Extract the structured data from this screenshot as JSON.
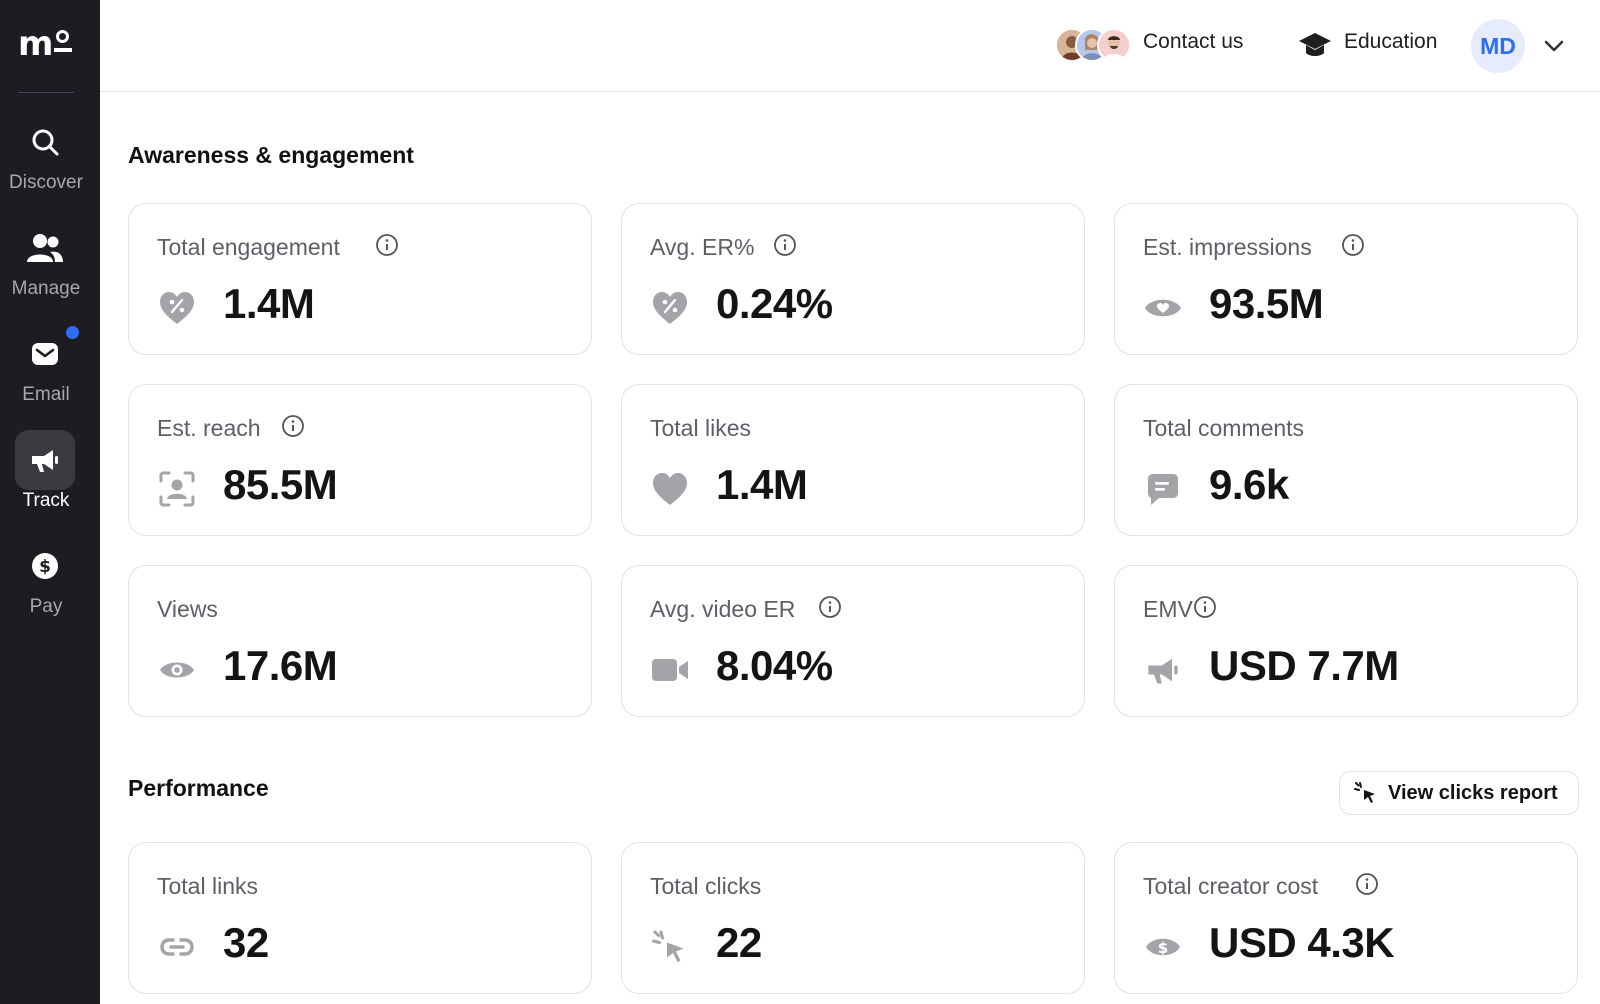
{
  "sidebar": {
    "logo": "mo",
    "items": [
      {
        "label": "Discover",
        "icon": "search-icon"
      },
      {
        "label": "Manage",
        "icon": "users-icon"
      },
      {
        "label": "Email",
        "icon": "mail-icon"
      },
      {
        "label": "Track",
        "icon": "megaphone-icon"
      },
      {
        "label": "Pay",
        "icon": "dollar-icon"
      }
    ],
    "active": "Track"
  },
  "header": {
    "contact_label": "Contact us",
    "education_label": "Education",
    "user_initials": "MD"
  },
  "awareness": {
    "title": "Awareness & engagement",
    "cards": [
      {
        "label": "Total engagement",
        "value": "1.4M",
        "icon": "heart-percent-icon",
        "info": true
      },
      {
        "label": "Avg. ER%",
        "value": "0.24%",
        "icon": "heart-percent-icon",
        "info": true
      },
      {
        "label": "Est. impressions",
        "value": "93.5M",
        "icon": "eye-filled-icon",
        "info": true
      },
      {
        "label": "Est. reach",
        "value": "85.5M",
        "icon": "reach-icon",
        "info": true
      },
      {
        "label": "Total likes",
        "value": "1.4M",
        "icon": "heart-icon",
        "info": false
      },
      {
        "label": "Total comments",
        "value": "9.6k",
        "icon": "comment-icon",
        "info": false
      },
      {
        "label": "Views",
        "value": "17.6M",
        "icon": "eye-icon",
        "info": false
      },
      {
        "label": "Avg. video ER",
        "value": "8.04%",
        "icon": "video-icon",
        "info": true
      },
      {
        "label": "EMV",
        "value": "USD 7.7M",
        "icon": "megaphone-icon",
        "info": true
      }
    ]
  },
  "performance": {
    "title": "Performance",
    "report_button": "View clicks report",
    "cards": [
      {
        "label": "Total links",
        "value": "32",
        "icon": "link-icon",
        "info": false
      },
      {
        "label": "Total clicks",
        "value": "22",
        "icon": "click-icon",
        "info": false
      },
      {
        "label": "Total creator cost",
        "value": "USD 4.3K",
        "icon": "money-icon",
        "info": true
      }
    ]
  },
  "colors": {
    "sidebar_bg": "#1e1c22",
    "accent": "#2d6cf6",
    "card_border": "#e2e2e6",
    "icon_gray": "#a3a3a8"
  }
}
